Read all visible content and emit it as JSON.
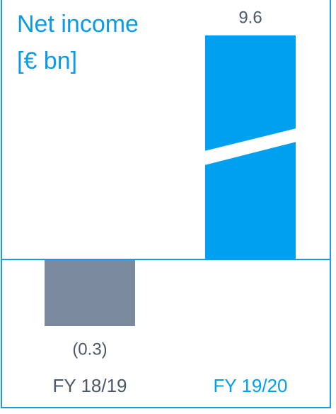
{
  "chart_data": {
    "type": "bar",
    "title": [
      "Net income",
      "[€ bn]"
    ],
    "categories": [
      "FY 18/19",
      "FY 19/20"
    ],
    "values": [
      -0.3,
      9.6
    ],
    "value_labels": [
      "(0.3)",
      "9.6"
    ],
    "colors": [
      "#7b899c",
      "#00a0f0"
    ],
    "axis_break": true
  }
}
